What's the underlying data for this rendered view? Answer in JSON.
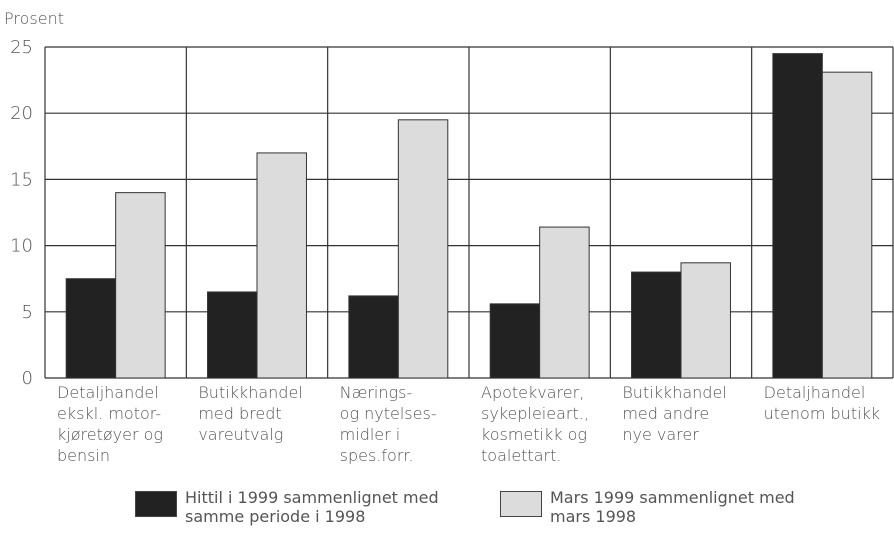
{
  "chart_data": {
    "type": "bar",
    "y_label": "Prosent",
    "categories": [
      [
        "Detaljhandel",
        "ekskl. motor-",
        "kjøretøyer og",
        "bensin"
      ],
      [
        "Butikkhandel",
        "med bredt",
        "vareutvalg"
      ],
      [
        "Nærings-",
        "og nytelses-",
        "midler i",
        "spes.forr."
      ],
      [
        "Apotekvarer,",
        "sykepleieart.,",
        "kosmetikk og",
        "toalettart."
      ],
      [
        "Butikkhandel",
        "med andre",
        "nye varer"
      ],
      [
        "Detaljhandel",
        "utenom butikk"
      ]
    ],
    "series": [
      {
        "name": "Hittil i 1999 sammenlignet med samme periode i 1998",
        "color": "#222222",
        "values": [
          7.5,
          6.5,
          6.2,
          5.6,
          8.0,
          24.5
        ]
      },
      {
        "name": "Mars 1999 sammenlignet med mars 1998",
        "color": "#dcdcdc",
        "values": [
          14.0,
          17.0,
          19.5,
          11.4,
          8.7,
          23.1
        ]
      }
    ],
    "ylim": [
      0,
      25
    ],
    "yticks": [
      0,
      5,
      10,
      15,
      20,
      25
    ],
    "grid": true
  }
}
